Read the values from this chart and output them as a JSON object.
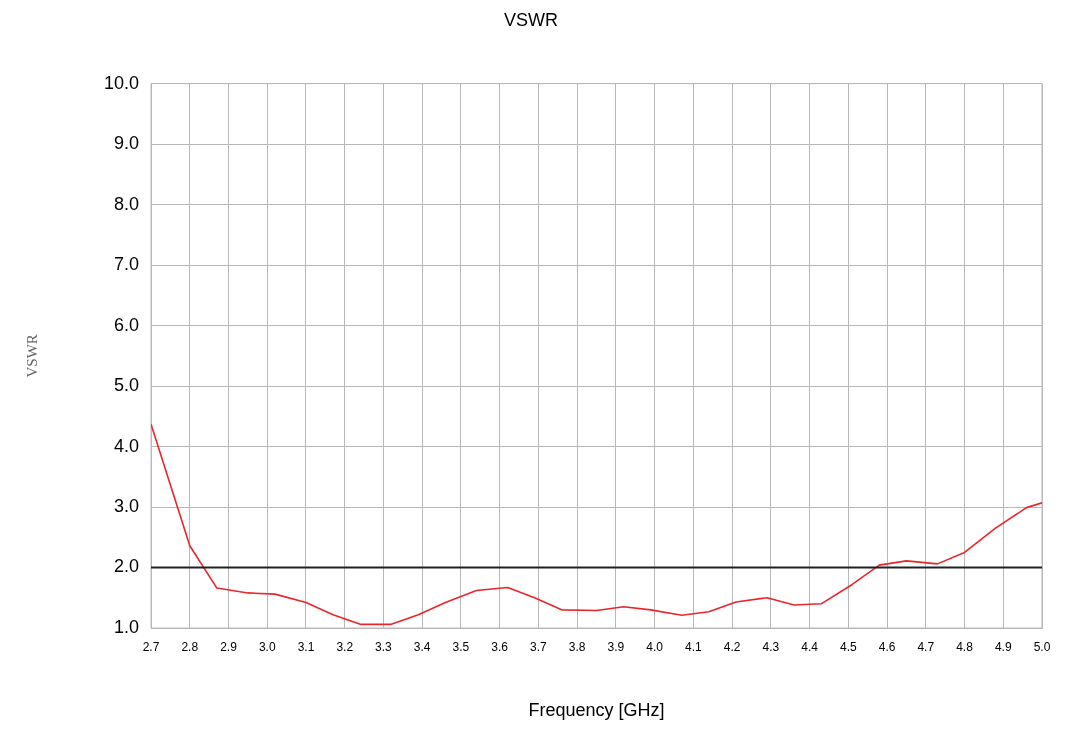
{
  "chart_data": {
    "type": "line",
    "title": "VSWR",
    "xlabel": "Frequency [GHz]",
    "ylabel": "VSWR",
    "xlim": [
      2.7,
      5.0
    ],
    "xticks": [
      2.7,
      2.8,
      2.9,
      {
        "value": 3,
        "label": "3.0"
      },
      3.1,
      3.2,
      3.3,
      3.4,
      3.5,
      3.6,
      3.7,
      3.8,
      3.9,
      {
        "value": 4,
        "label": "4.0"
      },
      4.1,
      4.2,
      4.3,
      4.4,
      4.5,
      4.6,
      4.7,
      4.8,
      4.9,
      {
        "value": 5,
        "label": "5.0"
      }
    ],
    "ylim": [
      1,
      10
    ],
    "yticks": [
      {
        "value": 1,
        "label": "1.0"
      },
      {
        "value": 2,
        "label": "2.0"
      },
      {
        "value": 3,
        "label": "3.0"
      },
      {
        "value": 4,
        "label": "4.0"
      },
      {
        "value": 5,
        "label": "5.0"
      },
      {
        "value": 6,
        "label": "6.0"
      },
      {
        "value": 7,
        "label": "7.0"
      },
      {
        "value": 8,
        "label": "8.0"
      },
      {
        "value": 9,
        "label": "9.0"
      },
      {
        "value": 10,
        "label": "10.0"
      }
    ],
    "grid": true,
    "legend": false,
    "marker": "none",
    "line_style": "solid",
    "x": [
      2.7,
      2.8,
      2.87,
      2.95,
      3.02,
      3.1,
      3.17,
      3.24,
      3.32,
      3.39,
      3.46,
      3.54,
      3.62,
      3.69,
      3.76,
      3.85,
      3.92,
      3.99,
      4.07,
      4.14,
      4.21,
      4.29,
      4.36,
      4.43,
      4.51,
      4.58,
      4.65,
      4.73,
      4.8,
      4.88,
      4.96,
      5.0
    ],
    "series": [
      {
        "color": "#e8262b",
        "values": [
          4.37,
          2.36,
          1.66,
          1.58,
          1.56,
          1.42,
          1.22,
          1.06,
          1.06,
          1.22,
          1.42,
          1.62,
          1.67,
          1.5,
          1.3,
          1.29,
          1.35,
          1.3,
          1.21,
          1.27,
          1.43,
          1.5,
          1.38,
          1.4,
          1.72,
          2.04,
          2.11,
          2.06,
          2.25,
          2.65,
          2.99,
          3.07
        ]
      }
    ],
    "ref_lines": [
      {
        "axis": "y",
        "value": 2,
        "color": "#222222",
        "line_style": "solid"
      }
    ]
  }
}
